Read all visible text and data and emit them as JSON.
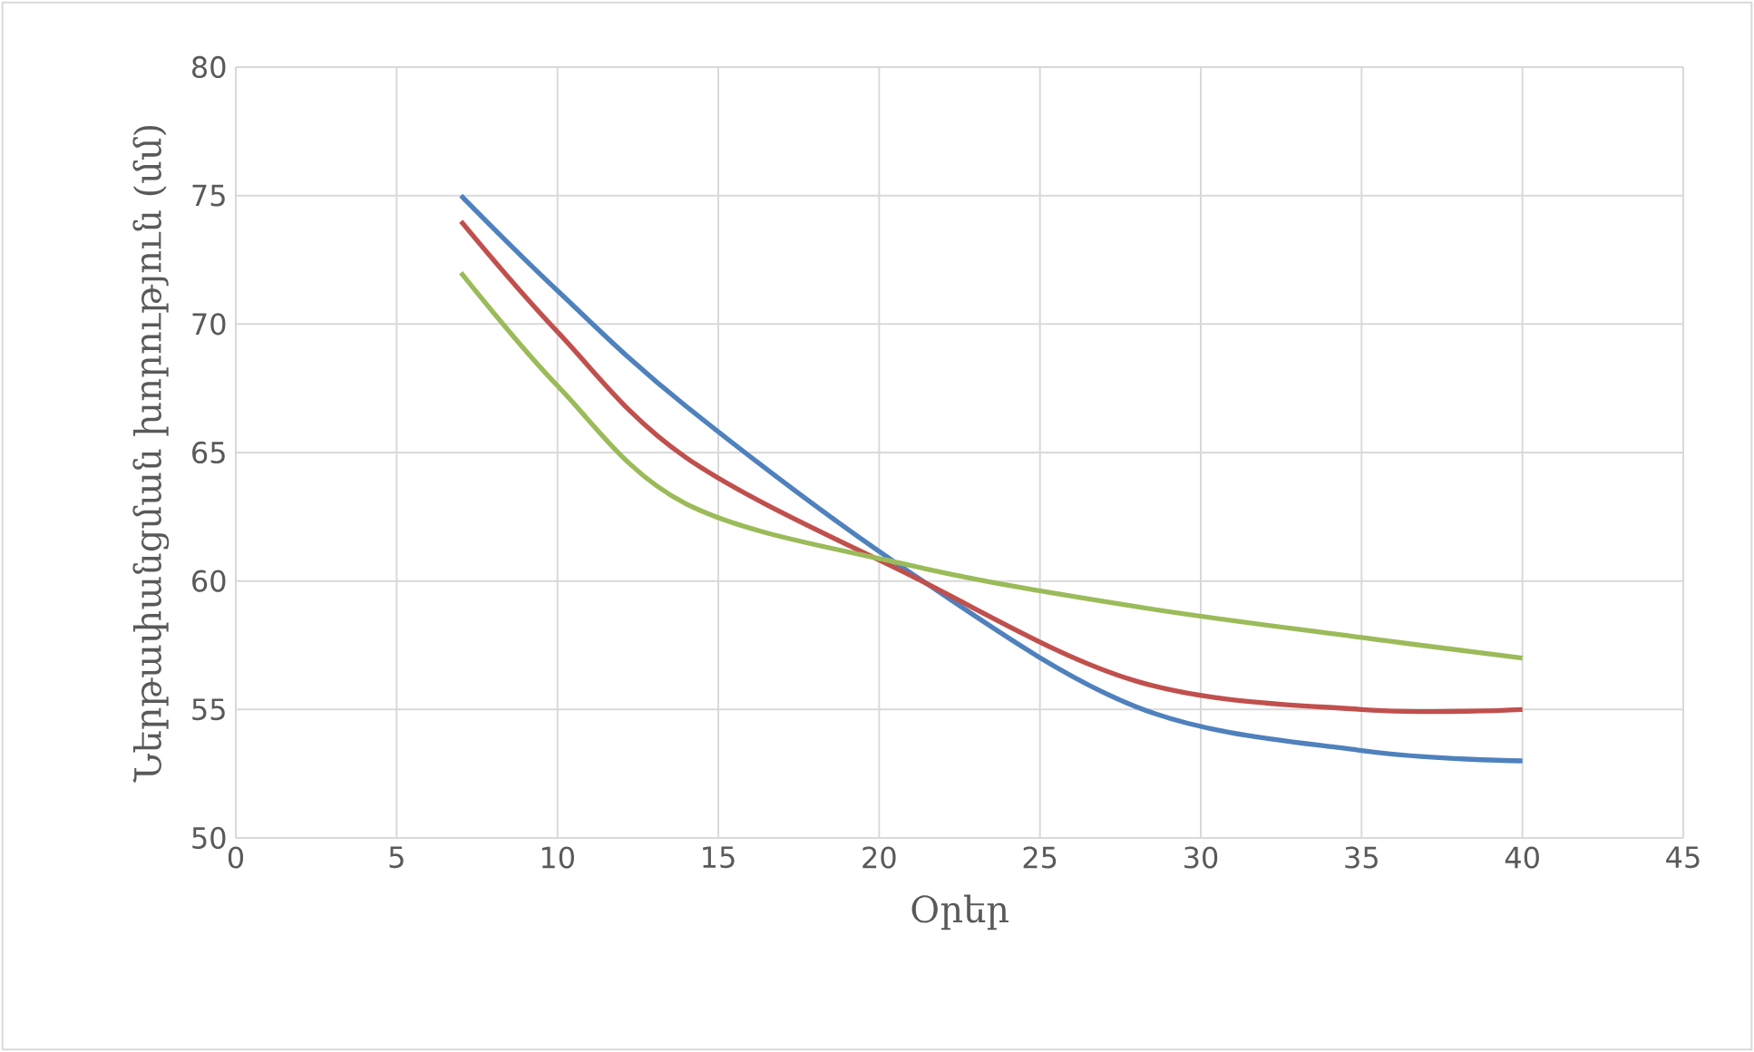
{
  "chart_data": {
    "type": "line",
    "xlabel": "Օրեր",
    "ylabel": "Ներթափանցման խորություն (մմ)",
    "x": [
      7,
      10,
      14,
      21,
      28,
      35,
      40
    ],
    "series": [
      {
        "color": "#4f81bd",
        "values": [
          75,
          71.3,
          66.8,
          60.3,
          55.1,
          53.4,
          53
        ]
      },
      {
        "color": "#c0504d",
        "values": [
          74,
          69.7,
          64.8,
          60.2,
          56.1,
          55,
          55
        ]
      },
      {
        "color": "#9bbb59",
        "values": [
          72,
          67.6,
          63,
          60.6,
          59,
          57.8,
          57
        ]
      }
    ],
    "xlim": [
      0,
      45
    ],
    "ylim": [
      50,
      80
    ],
    "xticks": [
      0,
      5,
      10,
      15,
      20,
      25,
      30,
      35,
      40,
      45
    ],
    "yticks": [
      50,
      55,
      60,
      65,
      70,
      75,
      80
    ],
    "grid": true,
    "line_style": "solid",
    "marker": "none"
  }
}
